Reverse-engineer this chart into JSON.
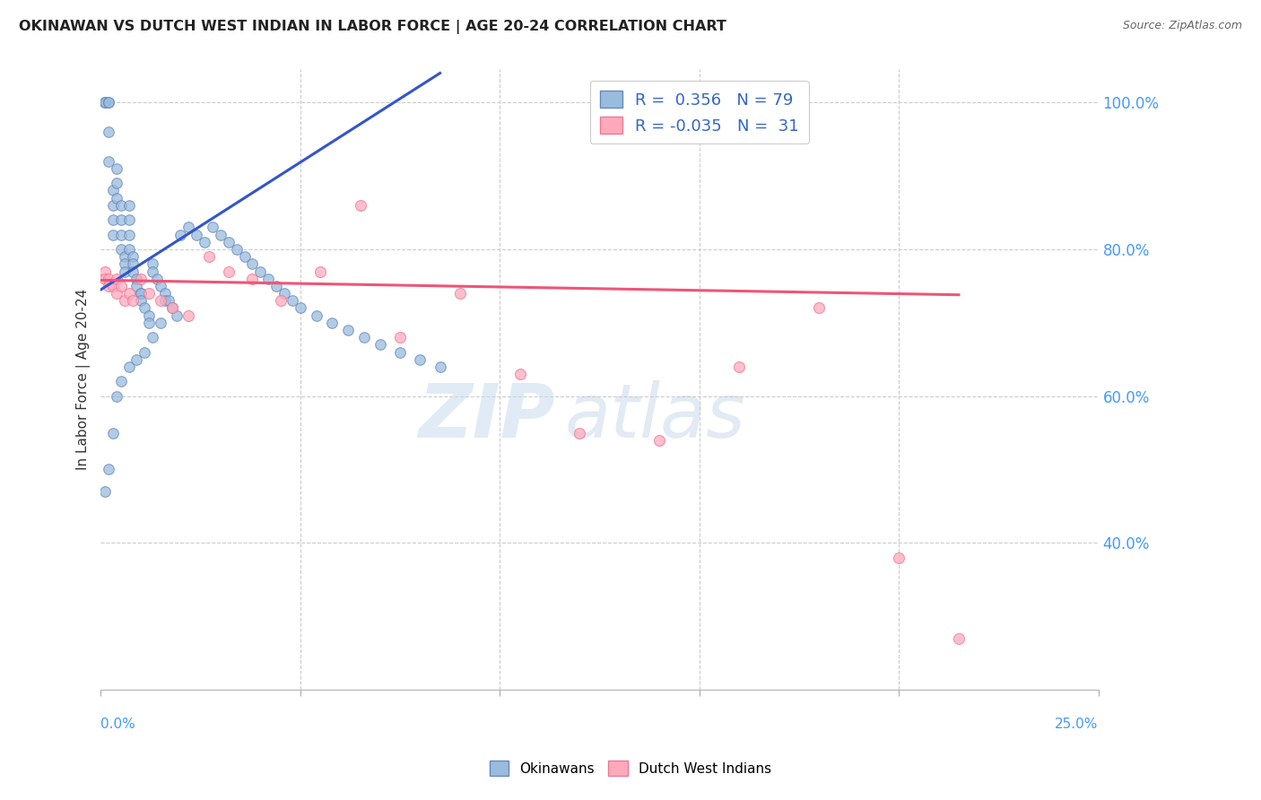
{
  "title": "OKINAWAN VS DUTCH WEST INDIAN IN LABOR FORCE | AGE 20-24 CORRELATION CHART",
  "source": "Source: ZipAtlas.com",
  "ylabel": "In Labor Force | Age 20-24",
  "xlim": [
    0.0,
    0.25
  ],
  "ylim": [
    0.2,
    1.045
  ],
  "blue_fill": "#99BBDD",
  "blue_edge": "#6688BB",
  "pink_fill": "#FFAABB",
  "pink_edge": "#EE7799",
  "trend_blue": "#3355CC",
  "trend_pink": "#EE5577",
  "grid_color": "#CCCCCC",
  "yticks": [
    0.4,
    0.6,
    0.8,
    1.0
  ],
  "ytick_labels": [
    "40.0%",
    "60.0%",
    "80.0%",
    "100.0%"
  ],
  "axis_label_color": "#4499FF",
  "blue_x": [
    0.001,
    0.001,
    0.001,
    0.002,
    0.002,
    0.002,
    0.002,
    0.003,
    0.003,
    0.003,
    0.003,
    0.004,
    0.004,
    0.004,
    0.005,
    0.005,
    0.005,
    0.005,
    0.006,
    0.006,
    0.006,
    0.007,
    0.007,
    0.007,
    0.007,
    0.008,
    0.008,
    0.008,
    0.009,
    0.009,
    0.01,
    0.01,
    0.01,
    0.011,
    0.012,
    0.012,
    0.013,
    0.013,
    0.014,
    0.015,
    0.016,
    0.016,
    0.017,
    0.018,
    0.019,
    0.02,
    0.022,
    0.024,
    0.026,
    0.028,
    0.03,
    0.032,
    0.034,
    0.036,
    0.038,
    0.04,
    0.042,
    0.044,
    0.046,
    0.048,
    0.05,
    0.054,
    0.058,
    0.062,
    0.066,
    0.07,
    0.075,
    0.08,
    0.085,
    0.001,
    0.002,
    0.003,
    0.004,
    0.005,
    0.007,
    0.009,
    0.011,
    0.013,
    0.015
  ],
  "blue_y": [
    1.0,
    1.0,
    1.0,
    1.0,
    1.0,
    0.96,
    0.92,
    0.88,
    0.86,
    0.84,
    0.82,
    0.91,
    0.89,
    0.87,
    0.86,
    0.84,
    0.82,
    0.8,
    0.79,
    0.78,
    0.77,
    0.86,
    0.84,
    0.82,
    0.8,
    0.79,
    0.78,
    0.77,
    0.76,
    0.75,
    0.74,
    0.74,
    0.73,
    0.72,
    0.71,
    0.7,
    0.78,
    0.77,
    0.76,
    0.75,
    0.74,
    0.73,
    0.73,
    0.72,
    0.71,
    0.82,
    0.83,
    0.82,
    0.81,
    0.83,
    0.82,
    0.81,
    0.8,
    0.79,
    0.78,
    0.77,
    0.76,
    0.75,
    0.74,
    0.73,
    0.72,
    0.71,
    0.7,
    0.69,
    0.68,
    0.67,
    0.66,
    0.65,
    0.64,
    0.47,
    0.5,
    0.55,
    0.6,
    0.62,
    0.64,
    0.65,
    0.66,
    0.68,
    0.7
  ],
  "pink_x": [
    0.001,
    0.001,
    0.002,
    0.002,
    0.003,
    0.004,
    0.004,
    0.005,
    0.006,
    0.007,
    0.008,
    0.01,
    0.012,
    0.015,
    0.018,
    0.022,
    0.027,
    0.032,
    0.038,
    0.045,
    0.055,
    0.065,
    0.075,
    0.09,
    0.105,
    0.12,
    0.14,
    0.16,
    0.18,
    0.2,
    0.215
  ],
  "pink_y": [
    0.77,
    0.76,
    0.76,
    0.75,
    0.75,
    0.76,
    0.74,
    0.75,
    0.73,
    0.74,
    0.73,
    0.76,
    0.74,
    0.73,
    0.72,
    0.71,
    0.79,
    0.77,
    0.76,
    0.73,
    0.77,
    0.86,
    0.68,
    0.74,
    0.63,
    0.55,
    0.54,
    0.64,
    0.72,
    0.38,
    0.27
  ],
  "blue_trend_x": [
    0.0,
    0.085
  ],
  "blue_trend_y": [
    0.745,
    1.04
  ],
  "pink_trend_x": [
    0.0,
    0.215
  ],
  "pink_trend_y": [
    0.758,
    0.738
  ]
}
